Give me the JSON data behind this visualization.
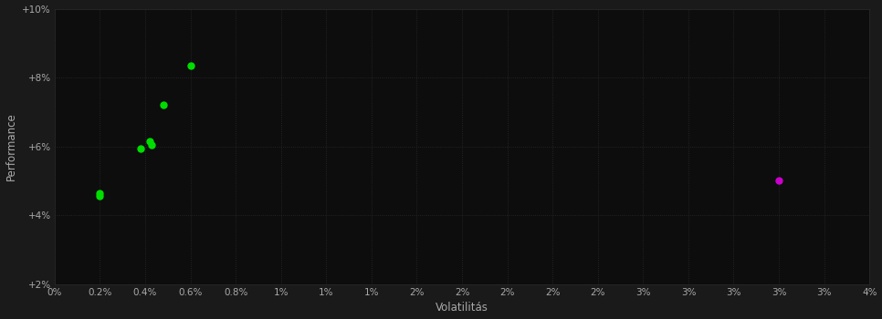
{
  "background_color": "#1a1a1a",
  "plot_bg_color": "#0d0d0d",
  "grid_color": "#2a2a2a",
  "text_color": "#aaaaaa",
  "xlabel": "Volatilitás",
  "ylabel": "Performance",
  "xlim": [
    0,
    0.036
  ],
  "ylim": [
    0.02,
    0.1
  ],
  "xtick_values": [
    0.0,
    0.002,
    0.004,
    0.006,
    0.008,
    0.01,
    0.012,
    0.014,
    0.016,
    0.018,
    0.02,
    0.022,
    0.024,
    0.026,
    0.028,
    0.03,
    0.032,
    0.034,
    0.036
  ],
  "ytick_values": [
    0.02,
    0.04,
    0.06,
    0.08,
    0.1
  ],
  "green_points": [
    [
      0.002,
      0.0465
    ],
    [
      0.002,
      0.0455
    ],
    [
      0.0038,
      0.0595
    ],
    [
      0.0042,
      0.0615
    ],
    [
      0.0043,
      0.0605
    ],
    [
      0.0048,
      0.072
    ],
    [
      0.006,
      0.0835
    ]
  ],
  "magenta_points": [
    [
      0.032,
      0.05
    ]
  ],
  "green_color": "#00dd00",
  "magenta_color": "#cc00cc",
  "marker_size": 5
}
